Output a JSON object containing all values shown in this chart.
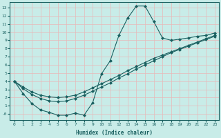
{
  "title": "",
  "xlabel": "Humidex (Indice chaleur)",
  "ylabel": "",
  "bg_color": "#c8ece8",
  "line_color": "#1a6060",
  "grid_color": "#e8d8d8",
  "xlim": [
    -0.5,
    23.5
  ],
  "ylim": [
    -0.7,
    13.7
  ],
  "xticks": [
    0,
    1,
    2,
    3,
    4,
    5,
    6,
    7,
    8,
    9,
    10,
    11,
    12,
    13,
    14,
    15,
    16,
    17,
    18,
    19,
    20,
    21,
    22,
    23
  ],
  "yticks": [
    0,
    1,
    2,
    3,
    4,
    5,
    6,
    7,
    8,
    9,
    10,
    11,
    12,
    13
  ],
  "ytick_labels": [
    "-0",
    "1",
    "2",
    "3",
    "4",
    "5",
    "6",
    "7",
    "8",
    "9",
    "10",
    "11",
    "12",
    "13"
  ],
  "line1_x": [
    0,
    1,
    2,
    3,
    4,
    5,
    6,
    7,
    8,
    9,
    10,
    11,
    12,
    13,
    14,
    15,
    16,
    17,
    18,
    19,
    20,
    21,
    22,
    23
  ],
  "line1_y": [
    4.0,
    2.5,
    1.3,
    0.5,
    0.2,
    -0.15,
    -0.15,
    0.1,
    -0.15,
    1.4,
    4.9,
    6.5,
    9.6,
    11.7,
    13.2,
    13.2,
    11.3,
    9.3,
    9.0,
    9.15,
    9.3,
    9.5,
    9.6,
    9.9
  ],
  "line2_x": [
    0,
    1,
    2,
    3,
    4,
    5,
    6,
    7,
    8,
    9,
    10,
    11,
    12,
    13,
    14,
    15,
    16,
    17,
    18,
    19,
    20,
    21,
    22,
    23
  ],
  "line2_y": [
    4.0,
    3.1,
    2.4,
    1.9,
    1.6,
    1.5,
    1.6,
    1.9,
    2.3,
    2.8,
    3.3,
    3.8,
    4.4,
    4.9,
    5.5,
    6.0,
    6.5,
    7.0,
    7.5,
    7.9,
    8.3,
    8.7,
    9.1,
    9.5
  ],
  "line3_x": [
    0,
    1,
    2,
    3,
    4,
    5,
    6,
    7,
    8,
    9,
    10,
    11,
    12,
    13,
    14,
    15,
    16,
    17,
    18,
    19,
    20,
    21,
    22,
    23
  ],
  "line3_y": [
    4.0,
    3.3,
    2.7,
    2.3,
    2.1,
    2.0,
    2.1,
    2.3,
    2.7,
    3.2,
    3.7,
    4.2,
    4.7,
    5.3,
    5.8,
    6.3,
    6.8,
    7.2,
    7.6,
    8.0,
    8.4,
    8.8,
    9.2,
    9.6
  ],
  "marker": "D",
  "marker_size": 2,
  "line_width": 0.8
}
